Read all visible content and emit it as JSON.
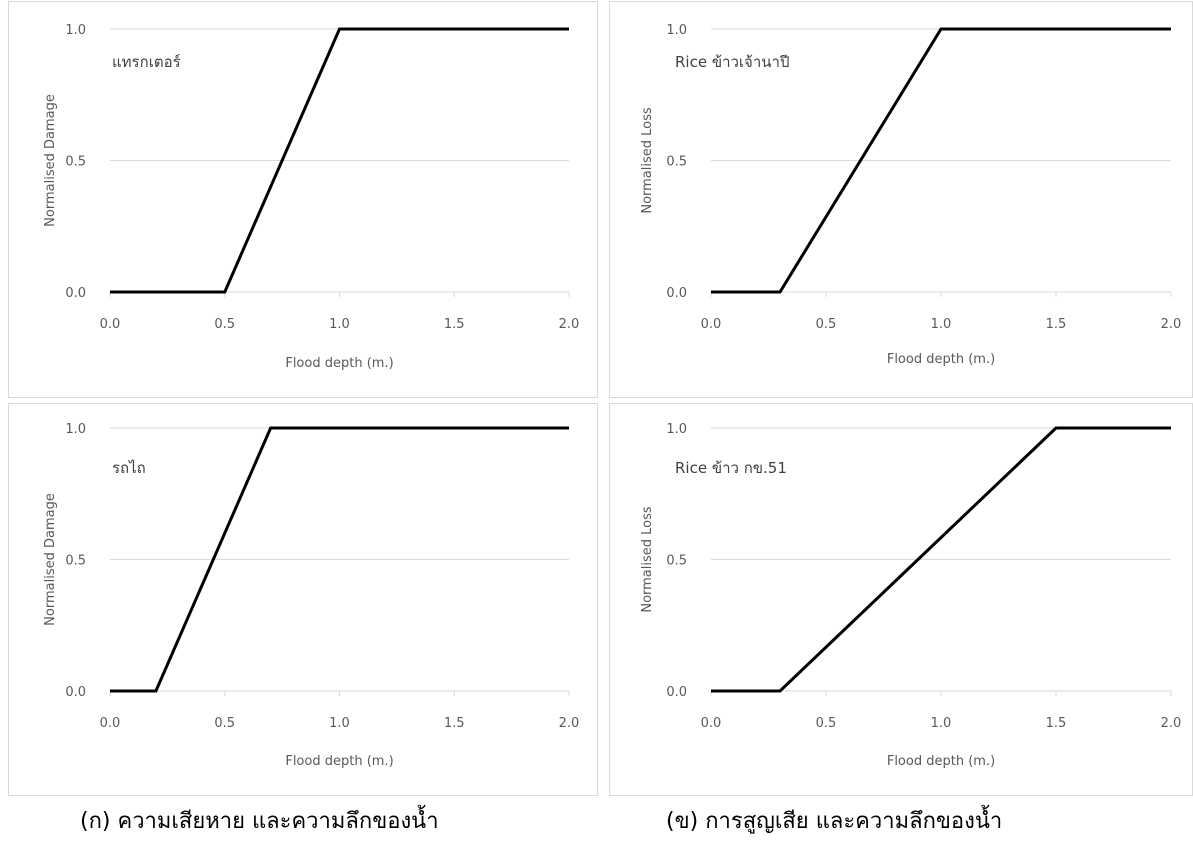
{
  "colors": {
    "series": "#000000",
    "grid": "#d9d9d9",
    "text": "#595959",
    "border": "#d9d9d9"
  },
  "captions": {
    "left": "(ก) ความเสียหาย และความลึกของน้ำ",
    "right": "(ข) การสูญเสีย และความลึกของน้ำ"
  },
  "chart_data": [
    {
      "type": "line",
      "annotation": "แทรกเตอร์",
      "xlabel": "Flood depth (m.)",
      "ylabel": "Normalised Damage",
      "xlim": [
        0,
        2
      ],
      "ylim": [
        0,
        1
      ],
      "xticks": [
        "0.0",
        "0.5",
        "1.0",
        "1.5",
        "2.0"
      ],
      "yticks": [
        "0.0",
        "0.5",
        "1.0"
      ],
      "grid": "horizontal",
      "series": [
        {
          "x": [
            0,
            0.5,
            1.0,
            2.0
          ],
          "y": [
            0,
            0,
            1,
            1
          ]
        }
      ]
    },
    {
      "type": "line",
      "annotation": "Rice ข้าวเจ้านาปี",
      "xlabel": "Flood depth (m.)",
      "ylabel": "Normalised Loss",
      "xlim": [
        0,
        2
      ],
      "ylim": [
        0,
        1
      ],
      "xticks": [
        "0.0",
        "0.5",
        "1.0",
        "1.5",
        "2.0"
      ],
      "yticks": [
        "0.0",
        "0.5",
        "1.0"
      ],
      "grid": "horizontal",
      "series": [
        {
          "x": [
            0,
            0.3,
            1.0,
            2.0
          ],
          "y": [
            0,
            0,
            1,
            1
          ]
        }
      ]
    },
    {
      "type": "line",
      "annotation": "รถไถ",
      "xlabel": "Flood depth (m.)",
      "ylabel": "Normalised Damage",
      "xlim": [
        0,
        2
      ],
      "ylim": [
        0,
        1
      ],
      "xticks": [
        "0.0",
        "0.5",
        "1.0",
        "1.5",
        "2.0"
      ],
      "yticks": [
        "0.0",
        "0.5",
        "1.0"
      ],
      "grid": "horizontal",
      "series": [
        {
          "x": [
            0,
            0.2,
            0.7,
            2.0
          ],
          "y": [
            0,
            0,
            1,
            1
          ]
        }
      ]
    },
    {
      "type": "line",
      "annotation": "Rice ข้าว กข.51",
      "xlabel": "Flood depth (m.)",
      "ylabel": "Normalised Loss",
      "xlim": [
        0,
        2
      ],
      "ylim": [
        0,
        1
      ],
      "xticks": [
        "0.0",
        "0.5",
        "1.0",
        "1.5",
        "2.0"
      ],
      "yticks": [
        "0.0",
        "0.5",
        "1.0"
      ],
      "grid": "horizontal",
      "series": [
        {
          "x": [
            0,
            0.3,
            1.5,
            2.0
          ],
          "y": [
            0,
            0,
            1,
            1
          ]
        }
      ]
    }
  ]
}
